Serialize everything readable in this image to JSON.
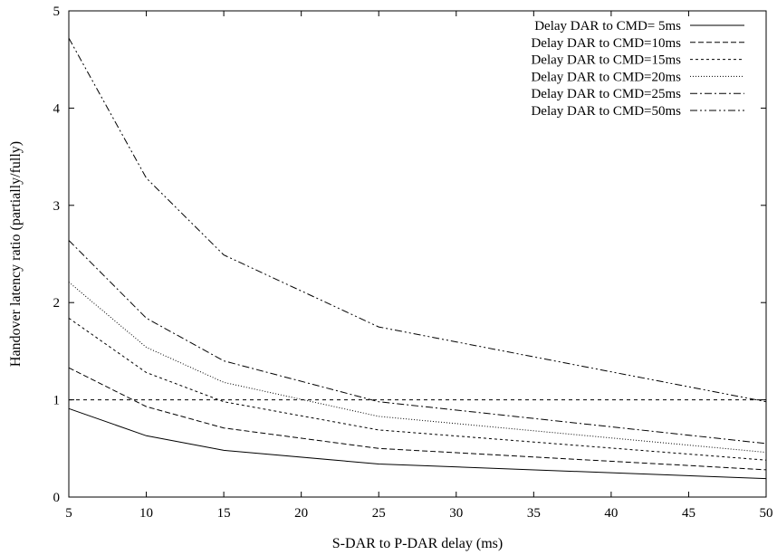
{
  "chart_data": {
    "type": "line",
    "title": "",
    "xlabel": "S-DAR to P-DAR delay (ms)",
    "ylabel": "Handover latency ratio (partially/fully)",
    "xlim": [
      5,
      50
    ],
    "ylim": [
      0,
      5
    ],
    "xticks": [
      5,
      10,
      15,
      20,
      25,
      30,
      35,
      40,
      45,
      50
    ],
    "yticks": [
      0,
      1,
      2,
      3,
      4,
      5
    ],
    "grid": false,
    "legend_position": "top-right",
    "x": [
      5,
      10,
      15,
      25,
      50
    ],
    "series": [
      {
        "name": "Delay DAR to CMD= 5ms",
        "values": [
          0.91,
          0.63,
          0.48,
          0.34,
          0.19
        ],
        "dash": "solid"
      },
      {
        "name": "Delay DAR to CMD=10ms",
        "values": [
          1.33,
          0.93,
          0.71,
          0.5,
          0.28
        ],
        "dash": "dashed"
      },
      {
        "name": "Delay DAR to CMD=15ms",
        "values": [
          1.84,
          1.28,
          0.98,
          0.69,
          0.38
        ],
        "dash": "short-dashed"
      },
      {
        "name": "Delay DAR to CMD=20ms",
        "values": [
          2.21,
          1.54,
          1.18,
          0.83,
          0.46
        ],
        "dash": "dotted"
      },
      {
        "name": "Delay DAR to CMD=25ms",
        "values": [
          2.64,
          1.84,
          1.4,
          0.98,
          0.55
        ],
        "dash": "dash-dot"
      },
      {
        "name": "Delay DAR to CMD=50ms",
        "values": [
          4.72,
          3.28,
          2.49,
          1.75,
          0.98
        ],
        "dash": "dash-dot-dot"
      }
    ],
    "reference_line": {
      "y": 1,
      "dash": "dashed"
    }
  }
}
